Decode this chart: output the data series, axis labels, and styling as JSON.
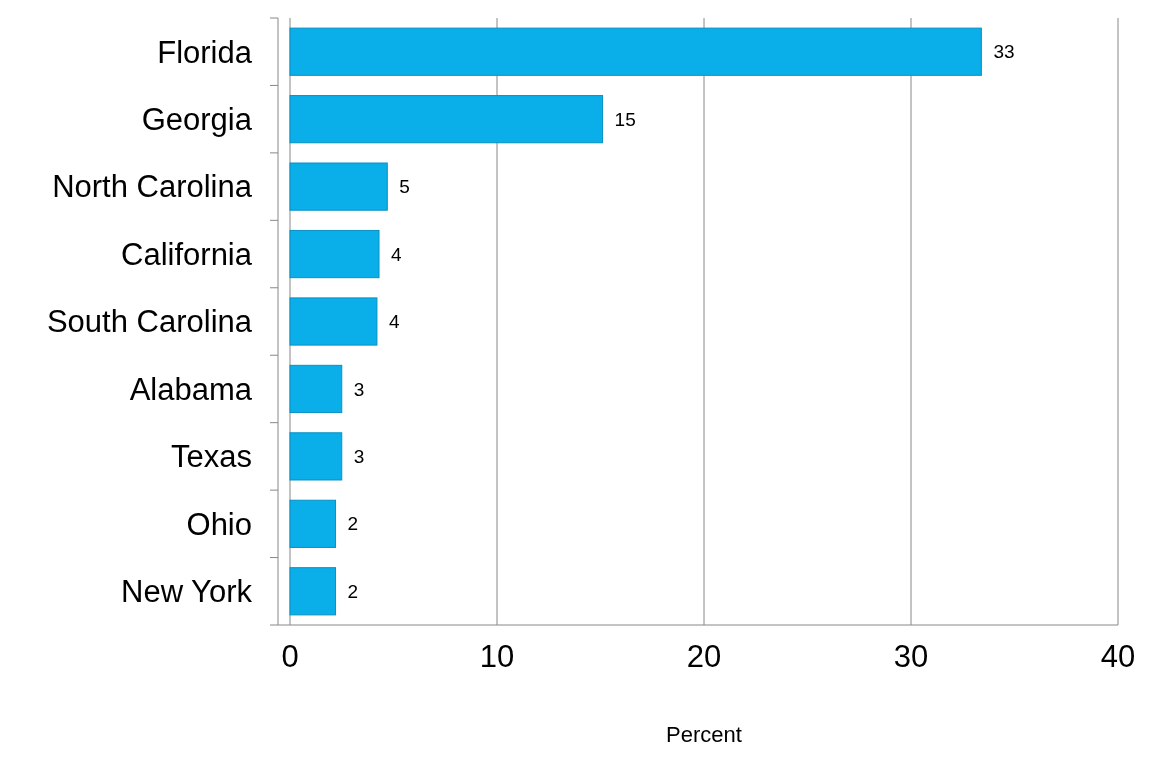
{
  "chart_data": {
    "type": "bar",
    "orientation": "horizontal",
    "xlabel": "Percent",
    "categories": [
      "Florida",
      "Georgia",
      "North Carolina",
      "California",
      "South Carolina",
      "Alabama",
      "Texas",
      "Ohio",
      "New York"
    ],
    "values": [
      33.4,
      15.1,
      4.7,
      4.3,
      4.2,
      2.5,
      2.5,
      2.2,
      2.2
    ],
    "value_labels": [
      "33",
      "15",
      "5",
      "4",
      "4",
      "3",
      "3",
      "2",
      "2"
    ],
    "color": "#0aaee8",
    "xlim": [
      0,
      40
    ],
    "xticks": [
      0,
      10,
      20,
      30,
      40
    ],
    "grid": "x"
  }
}
